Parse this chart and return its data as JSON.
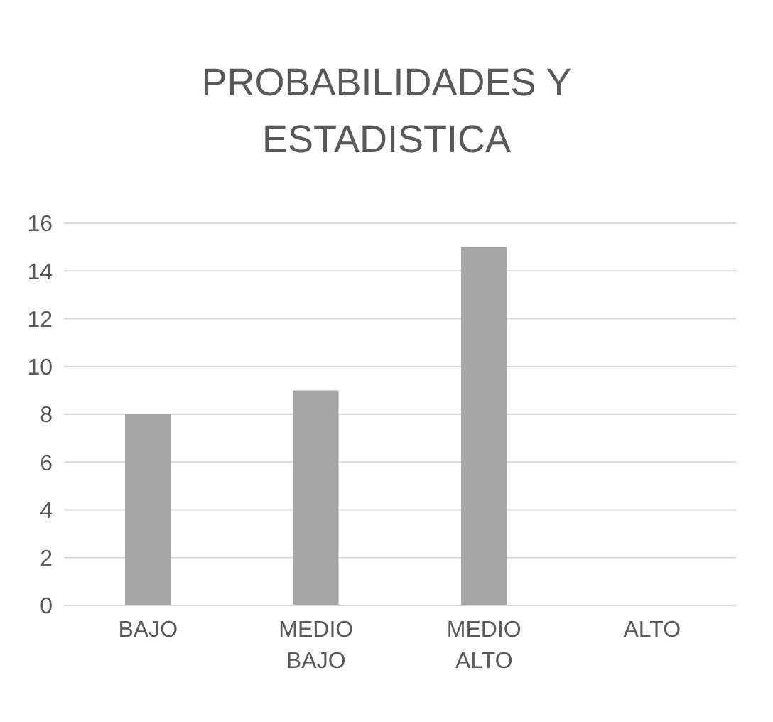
{
  "chart_data": {
    "type": "bar",
    "title": "PROBABILIDADES Y ESTADISTICA",
    "categories": [
      "BAJO",
      "MEDIO BAJO",
      "MEDIO ALTO",
      "ALTO"
    ],
    "values": [
      8,
      9,
      15,
      0
    ],
    "color": "#a5a5a5",
    "ylim": [
      0,
      16
    ],
    "yticks": [
      0,
      2,
      4,
      6,
      8,
      10,
      12,
      14,
      16
    ],
    "grid": "y",
    "legend": false
  }
}
